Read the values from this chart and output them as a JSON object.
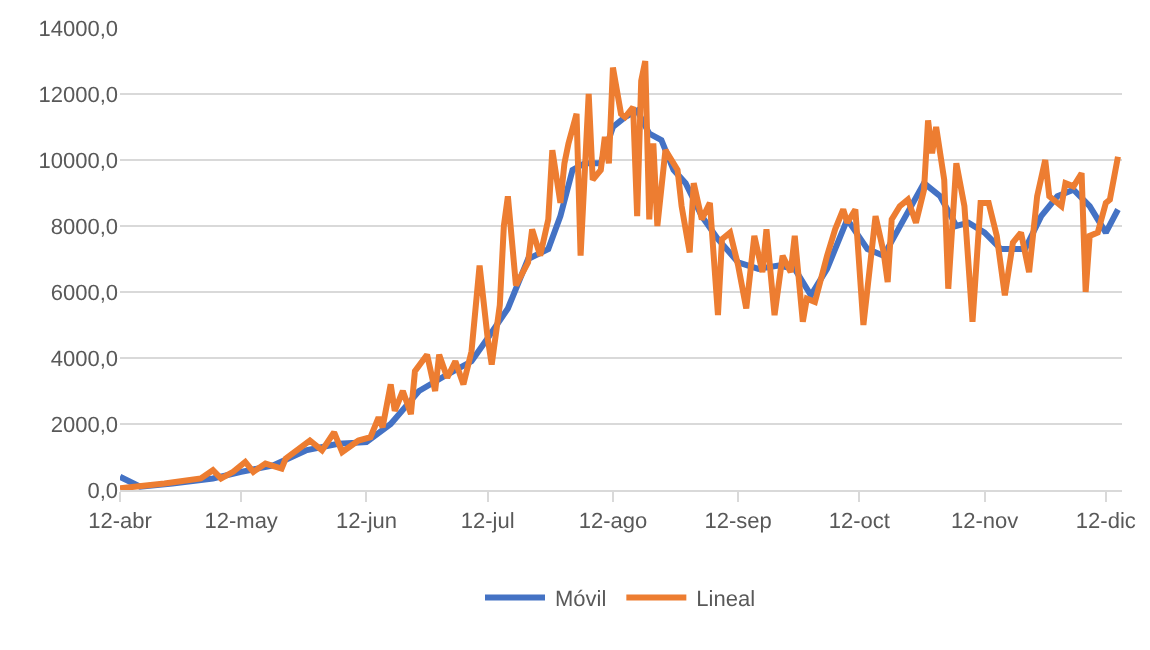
{
  "chart_data": {
    "type": "line",
    "xlim": [
      "--04-12",
      "--12-16"
    ],
    "xticks": [
      {
        "value": "--04-12",
        "label": "12-abr"
      },
      {
        "value": "--05-12",
        "label": "12-may"
      },
      {
        "value": "--06-12",
        "label": "12-jun"
      },
      {
        "value": "--07-12",
        "label": "12-jul"
      },
      {
        "value": "--08-12",
        "label": "12-ago"
      },
      {
        "value": "--09-12",
        "label": "12-sep"
      },
      {
        "value": "--10-12",
        "label": "12-oct"
      },
      {
        "value": "--11-12",
        "label": "12-nov"
      },
      {
        "value": "--12-12",
        "label": "12-dic"
      }
    ],
    "ylim": [
      0,
      14000
    ],
    "yticks": [
      {
        "value": 0,
        "label": "0,0"
      },
      {
        "value": 2000,
        "label": "2000,0"
      },
      {
        "value": 4000,
        "label": "4000,0"
      },
      {
        "value": 6000,
        "label": "6000,0"
      },
      {
        "value": 8000,
        "label": "8000,0"
      },
      {
        "value": 10000,
        "label": "10000,0"
      },
      {
        "value": 12000,
        "label": "12000,0"
      },
      {
        "value": 14000,
        "label": "14000,0"
      }
    ],
    "grid": "y",
    "legend": "bottom",
    "marker": "none",
    "line_style": "solid",
    "series": [
      {
        "name": "Móvil",
        "color": "#4472c4",
        "x": [
          "--04-12",
          "--04-17",
          "--04-25",
          "--05-05",
          "--05-12",
          "--05-20",
          "--05-28",
          "--06-05",
          "--06-12",
          "--06-18",
          "--06-25",
          "--07-02",
          "--07-08",
          "--07-12",
          "--07-17",
          "--07-22",
          "--07-27",
          "--07-30",
          "--08-02",
          "--08-05",
          "--08-09",
          "--08-12",
          "--08-15",
          "--08-18",
          "--08-21",
          "--08-24",
          "--08-27",
          "--08-30",
          "--09-03",
          "--09-07",
          "--09-12",
          "--09-17",
          "--09-22",
          "--09-26",
          "--09-30",
          "--10-04",
          "--10-09",
          "--10-14",
          "--10-18",
          "--10-23",
          "--10-28",
          "--11-01",
          "--11-05",
          "--11-08",
          "--11-12",
          "--11-16",
          "--11-22",
          "--11-26",
          "--11-30",
          "--12-04",
          "--12-08",
          "--12-12",
          "--12-15"
        ],
        "values": [
          400,
          100,
          200,
          350,
          550,
          750,
          1200,
          1400,
          1450,
          2000,
          3000,
          3500,
          3900,
          4600,
          5500,
          7000,
          7300,
          8300,
          9700,
          9900,
          9900,
          11000,
          11300,
          11500,
          10800,
          10600,
          9700,
          9300,
          8300,
          7600,
          6900,
          6700,
          6800,
          6700,
          5900,
          6700,
          8200,
          7300,
          7100,
          8200,
          9300,
          8900,
          8000,
          8100,
          7800,
          7300,
          7300,
          8300,
          8900,
          9100,
          8600,
          7800,
          8500
        ]
      },
      {
        "name": "Lineal",
        "color": "#ed7d31",
        "x": [
          "--04-12",
          "--04-23",
          "--05-02",
          "--05-05",
          "--05-07",
          "--05-10",
          "--05-13",
          "--05-15",
          "--05-18",
          "--05-22",
          "--05-23",
          "--05-29",
          "--06-01",
          "--06-04",
          "--06-06",
          "--06-10",
          "--06-13",
          "--06-15",
          "--06-16",
          "--06-18",
          "--06-19",
          "--06-21",
          "--06-23",
          "--06-24",
          "--06-27",
          "--06-29",
          "--06-30",
          "--07-02",
          "--07-04",
          "--07-06",
          "--07-08",
          "--07-10",
          "--07-12",
          "--07-13",
          "--07-15",
          "--07-16",
          "--07-17",
          "--07-19",
          "--07-22",
          "--07-23",
          "--07-25",
          "--07-27",
          "--07-28",
          "--07-30",
          "--07-31",
          "--08-01",
          "--08-03",
          "--08-04",
          "--08-06",
          "--08-07",
          "--08-09",
          "--08-10",
          "--08-11",
          "--08-12",
          "--08-14",
          "--08-15",
          "--08-17",
          "--08-18",
          "--08-19",
          "--08-20",
          "--08-21",
          "--08-22",
          "--08-23",
          "--08-25",
          "--08-28",
          "--08-29",
          "--08-31",
          "--09-01",
          "--09-03",
          "--09-05",
          "--09-07",
          "--09-08",
          "--09-10",
          "--09-12",
          "--09-14",
          "--09-16",
          "--09-18",
          "--09-19",
          "--09-21",
          "--09-23",
          "--09-25",
          "--09-26",
          "--09-28",
          "--09-29",
          "--10-01",
          "--10-04",
          "--10-06",
          "--10-08",
          "--10-09",
          "--10-11",
          "--10-13",
          "--10-16",
          "--10-18",
          "--10-19",
          "--10-20",
          "--10-22",
          "--10-24",
          "--10-26",
          "--10-28",
          "--10-29",
          "--10-30",
          "--10-31",
          "--11-02",
          "--11-03",
          "--11-05",
          "--11-07",
          "--11-09",
          "--11-11",
          "--11-13",
          "--11-15",
          "--11-17",
          "--11-19",
          "--11-21",
          "--11-23",
          "--11-25",
          "--11-27",
          "--11-28",
          "--12-01",
          "--12-02",
          "--12-04",
          "--12-06",
          "--12-07",
          "--12-08",
          "--12-10",
          "--12-12",
          "--12-13",
          "--12-15"
        ],
        "values": [
          50,
          200,
          350,
          600,
          350,
          550,
          850,
          550,
          800,
          650,
          950,
          1500,
          1200,
          1750,
          1150,
          1500,
          1600,
          2200,
          1900,
          3200,
          2400,
          3000,
          2300,
          3600,
          4100,
          3000,
          4100,
          3400,
          3900,
          3200,
          4200,
          6800,
          4600,
          3800,
          5600,
          8000,
          8900,
          6200,
          6900,
          7900,
          7100,
          8200,
          10300,
          8700,
          9900,
          10500,
          11400,
          7100,
          12000,
          9400,
          9700,
          10700,
          9900,
          12800,
          11400,
          11300,
          11600,
          8300,
          12400,
          13000,
          8200,
          10500,
          8000,
          10300,
          9700,
          8600,
          7200,
          9300,
          8200,
          8700,
          5300,
          7600,
          7800,
          6800,
          5500,
          7700,
          6600,
          7900,
          5300,
          7100,
          6600,
          7700,
          5100,
          5800,
          5700,
          7100,
          7900,
          8500,
          8100,
          8500,
          5000,
          8300,
          7200,
          6300,
          8200,
          8600,
          8800,
          8100,
          9100,
          11200,
          10200,
          11000,
          9400,
          6100,
          9900,
          8600,
          5100,
          8700,
          8700,
          7700,
          5900,
          7500,
          7800,
          6600,
          8900,
          10000,
          8900,
          8600,
          9300,
          9200,
          9600,
          6000,
          7700,
          7800,
          8700,
          8800,
          10100
        ]
      }
    ]
  }
}
